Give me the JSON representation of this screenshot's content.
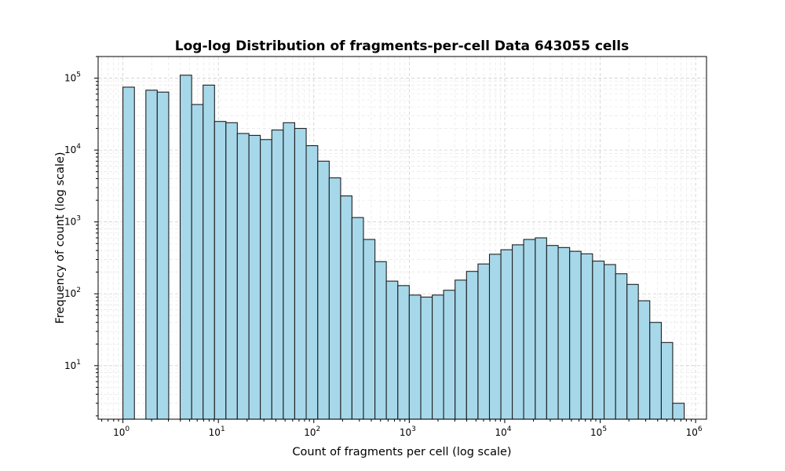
{
  "chart_data": {
    "type": "bar",
    "title": "Log-log Distribution of fragments-per-cell Data 643055 cells",
    "xlabel": "Count of fragments per cell (log scale)",
    "ylabel": "Frequency of count (log scale)",
    "xscale": "log",
    "yscale": "log",
    "xlim": [
      0.55,
      1300000
    ],
    "ylim": [
      1.8,
      200000
    ],
    "grid": "on",
    "x_ticks": [
      {
        "base": "10",
        "exp": "0",
        "value": 1
      },
      {
        "base": "10",
        "exp": "1",
        "value": 10
      },
      {
        "base": "10",
        "exp": "2",
        "value": 100
      },
      {
        "base": "10",
        "exp": "3",
        "value": 1000
      },
      {
        "base": "10",
        "exp": "4",
        "value": 10000
      },
      {
        "base": "10",
        "exp": "5",
        "value": 100000
      },
      {
        "base": "10",
        "exp": "6",
        "value": 1000000
      }
    ],
    "y_ticks": [
      {
        "base": "10",
        "exp": "1",
        "value": 10
      },
      {
        "base": "10",
        "exp": "2",
        "value": 100
      },
      {
        "base": "10",
        "exp": "3",
        "value": 1000
      },
      {
        "base": "10",
        "exp": "4",
        "value": 10000
      },
      {
        "base": "10",
        "exp": "5",
        "value": 100000
      }
    ],
    "bin_edges": [
      1,
      1.32,
      1.74,
      2.29,
      3.02,
      3.98,
      5.25,
      6.92,
      9.12,
      12.0,
      15.8,
      20.9,
      27.5,
      36.3,
      47.9,
      63.1,
      83.2,
      110,
      145,
      191,
      251,
      331,
      437,
      575,
      759,
      1000,
      1320,
      1740,
      2290,
      3020,
      3980,
      5250,
      6920,
      9120,
      12000,
      15800,
      20900,
      27500,
      36300,
      47900,
      63100,
      83200,
      110000,
      145000,
      191000,
      251000,
      331000,
      437000,
      575000,
      759000
    ],
    "counts": [
      75000,
      0,
      68000,
      64000,
      0,
      110000,
      43000,
      80000,
      25000,
      24000,
      17000,
      16000,
      14000,
      19000,
      24000,
      20000,
      11500,
      7000,
      4100,
      2300,
      1150,
      570,
      280,
      150,
      130,
      96,
      90,
      96,
      112,
      155,
      205,
      260,
      355,
      410,
      480,
      570,
      600,
      470,
      440,
      390,
      360,
      285,
      255,
      190,
      135,
      80,
      40,
      21,
      3
    ]
  }
}
